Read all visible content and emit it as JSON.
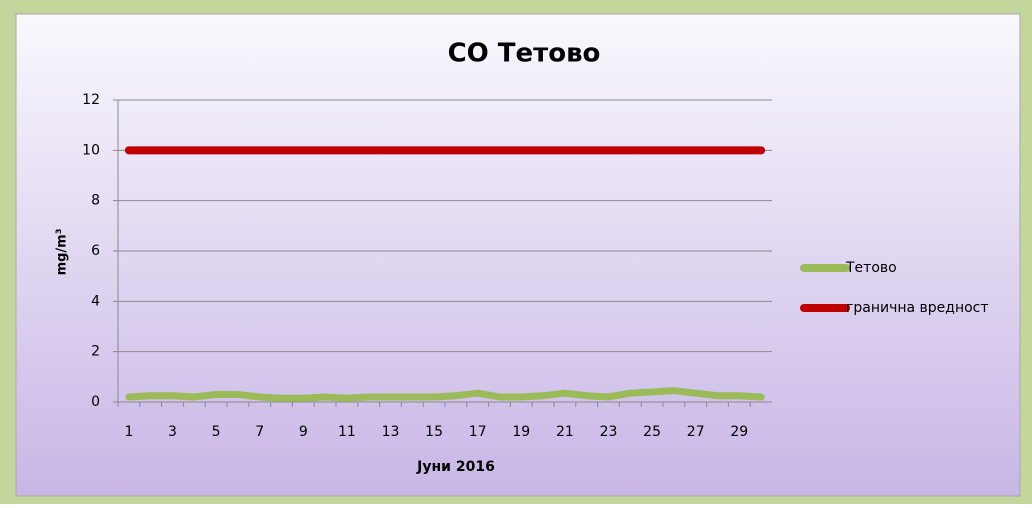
{
  "chart_data": {
    "type": "line",
    "title": "CO Тетово",
    "xlabel": "Јуни 2016",
    "ylabel": "mg/m³",
    "categories": [
      "1",
      null,
      "3",
      null,
      "5",
      null,
      "7",
      null,
      "9",
      null,
      "11",
      null,
      "13",
      null,
      "15",
      null,
      "17",
      null,
      "19",
      null,
      "21",
      null,
      "23",
      null,
      "25",
      null,
      "27",
      null,
      "29",
      null
    ],
    "series": [
      {
        "name": "Тетово",
        "color": "#9bbb59",
        "values": [
          0.2,
          0.25,
          0.25,
          0.2,
          0.3,
          0.3,
          0.2,
          0.15,
          0.15,
          0.2,
          0.15,
          0.2,
          0.2,
          0.2,
          0.2,
          0.25,
          0.35,
          0.2,
          0.2,
          0.25,
          0.35,
          0.25,
          0.2,
          0.35,
          0.4,
          0.45,
          0.35,
          0.25,
          0.25,
          0.2
        ]
      },
      {
        "name": "гранична вредност",
        "color": "#c00000",
        "values": [
          10,
          10,
          10,
          10,
          10,
          10,
          10,
          10,
          10,
          10,
          10,
          10,
          10,
          10,
          10,
          10,
          10,
          10,
          10,
          10,
          10,
          10,
          10,
          10,
          10,
          10,
          10,
          10,
          10,
          10
        ]
      }
    ],
    "ylim": [
      0,
      12
    ],
    "yticks": [
      0,
      2,
      4,
      6,
      8,
      10,
      12
    ],
    "grid": true,
    "legend": "right"
  }
}
